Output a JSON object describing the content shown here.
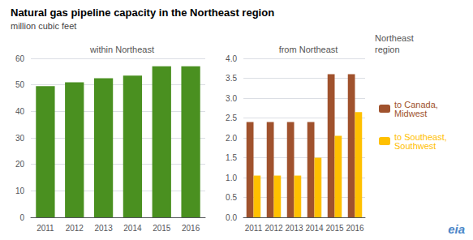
{
  "title": "Natural gas pipeline capacity in the Northeast region",
  "subtitle": "million cubic feet",
  "annotations": [
    "Northeast\nregion",
    "eia"
  ],
  "chart_data": [
    {
      "type": "bar",
      "title": "within Northeast",
      "categories": [
        "2011",
        "2012",
        "2013",
        "2014",
        "2015",
        "2016"
      ],
      "values": [
        49.5,
        51.0,
        52.5,
        53.5,
        57.0,
        57.0
      ],
      "color": "#4a9020",
      "ylim": [
        0,
        60
      ],
      "yticks": [
        0,
        10,
        20,
        30,
        40,
        50,
        60
      ],
      "grid": true
    },
    {
      "type": "bar",
      "title": "from Northeast",
      "categories": [
        "2011",
        "2012",
        "2013",
        "2014",
        "2015",
        "2016"
      ],
      "series": [
        {
          "name": "to Canada,\nMidwest",
          "color": "#a0522d",
          "values": [
            2.4,
            2.4,
            2.4,
            2.4,
            3.6,
            3.6
          ]
        },
        {
          "name": "to Southeast,\nSouthwest",
          "color": "#ffc000",
          "values": [
            1.05,
            1.05,
            1.05,
            1.5,
            2.05,
            2.65
          ]
        }
      ],
      "ylim": [
        0,
        4.0
      ],
      "yticks": [
        {
          "value": 0,
          "label": "0.0"
        },
        0.5,
        {
          "value": 1,
          "label": "1.0"
        },
        1.5,
        {
          "value": 2,
          "label": "2.0"
        },
        2.5,
        {
          "value": 3,
          "label": "3.0"
        },
        3.5,
        {
          "value": 4,
          "label": "4.0"
        }
      ],
      "grid": true,
      "legend": "right"
    }
  ]
}
